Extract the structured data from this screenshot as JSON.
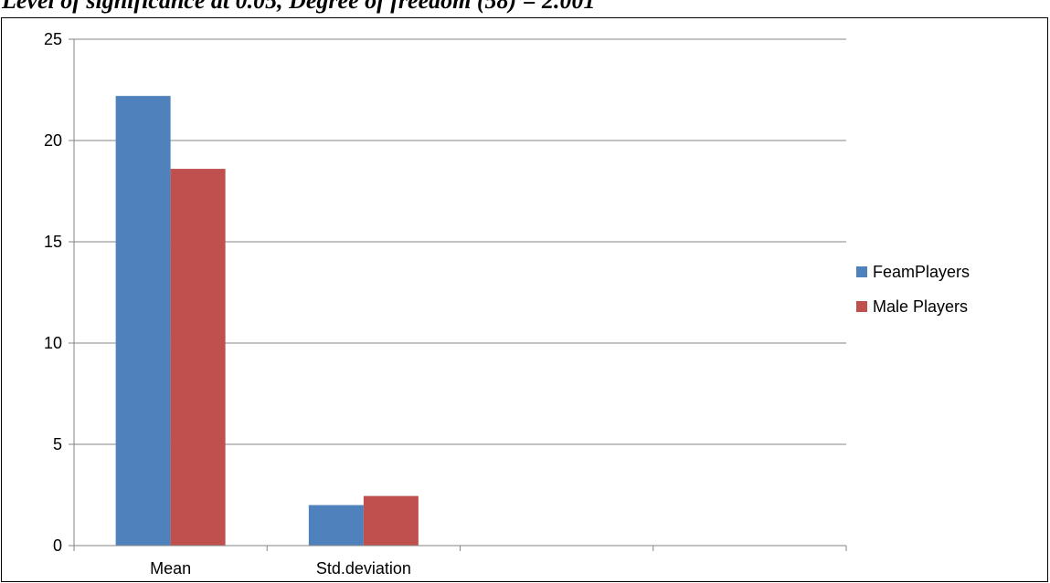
{
  "heading": "Level of significance at 0.05, Degree of freedom (58) = 2.001",
  "chart_data": {
    "type": "bar",
    "categories": [
      "Mean",
      "Std.deviation",
      "",
      ""
    ],
    "series": [
      {
        "name": "FeamPlayers",
        "color": "#4f81bd",
        "values": [
          22.2,
          2.0,
          null,
          null
        ]
      },
      {
        "name": "Male Players",
        "color": "#c0504d",
        "values": [
          18.6,
          2.45,
          null,
          null
        ]
      }
    ],
    "yticks": [
      0,
      5,
      10,
      15,
      20,
      25
    ],
    "ylim": [
      0,
      25
    ],
    "grid": true,
    "legend_position": "right"
  }
}
